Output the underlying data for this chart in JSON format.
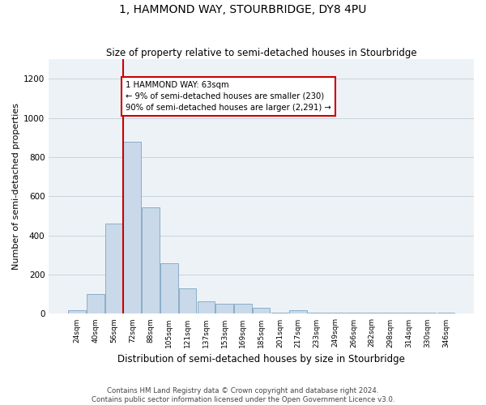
{
  "title": "1, HAMMOND WAY, STOURBRIDGE, DY8 4PU",
  "subtitle": "Size of property relative to semi-detached houses in Stourbridge",
  "xlabel": "Distribution of semi-detached houses by size in Stourbridge",
  "ylabel": "Number of semi-detached properties",
  "bins": [
    "24sqm",
    "40sqm",
    "56sqm",
    "72sqm",
    "88sqm",
    "105sqm",
    "121sqm",
    "137sqm",
    "153sqm",
    "169sqm",
    "185sqm",
    "201sqm",
    "217sqm",
    "233sqm",
    "249sqm",
    "266sqm",
    "282sqm",
    "298sqm",
    "314sqm",
    "330sqm",
    "346sqm"
  ],
  "bar_values": [
    20,
    100,
    460,
    880,
    545,
    260,
    130,
    65,
    50,
    50,
    30,
    5,
    20,
    5,
    5,
    5,
    5,
    5,
    5,
    5,
    5
  ],
  "bar_color": "#c9d9e9",
  "bar_edge_color": "#8aaec8",
  "grid_color": "#c8d4dc",
  "bg_color": "#edf2f7",
  "annotation_line1": "1 HAMMOND WAY: 63sqm",
  "annotation_line2": "← 9% of semi-detached houses are smaller (230)",
  "annotation_line3": "90% of semi-detached houses are larger (2,291) →",
  "property_line_color": "#cc0000",
  "annotation_box_facecolor": "#ffffff",
  "annotation_box_edgecolor": "#cc0000",
  "ylim": [
    0,
    1300
  ],
  "yticks": [
    0,
    200,
    400,
    600,
    800,
    1000,
    1200
  ],
  "title_fontsize": 10,
  "subtitle_fontsize": 8.5,
  "ylabel_fontsize": 8,
  "xlabel_fontsize": 8.5,
  "footer1": "Contains HM Land Registry data © Crown copyright and database right 2024.",
  "footer2": "Contains public sector information licensed under the Open Government Licence v3.0."
}
